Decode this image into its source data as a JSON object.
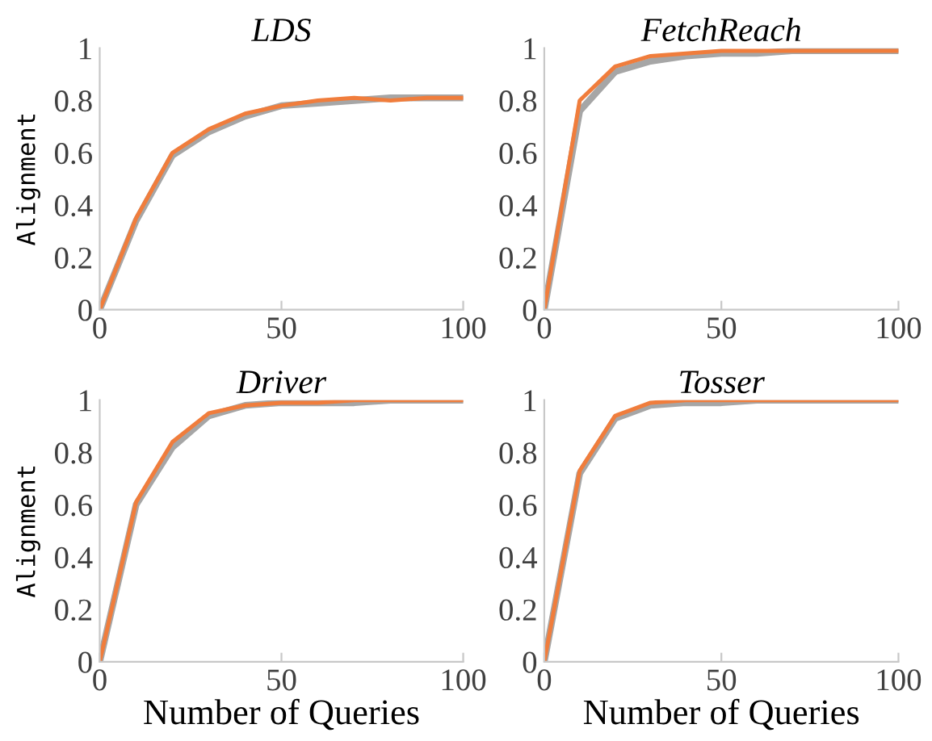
{
  "chart_data": [
    {
      "type": "line",
      "title": "LDS",
      "ylabel": "Alignment",
      "x": [
        0,
        10,
        20,
        30,
        40,
        50,
        60,
        70,
        80,
        90,
        100
      ],
      "xlim": [
        0,
        100
      ],
      "ylim": [
        0,
        1
      ],
      "xticks": [
        0,
        50,
        100
      ],
      "yticks": [
        0,
        0.2,
        0.4,
        0.6,
        0.8,
        1
      ],
      "series": [
        {
          "color": "#a6a6a6",
          "values": [
            0,
            0.34,
            0.59,
            0.68,
            0.74,
            0.78,
            0.79,
            0.8,
            0.81,
            0.81,
            0.81
          ]
        },
        {
          "color": "#f07d3c",
          "values": [
            0,
            0.35,
            0.6,
            0.69,
            0.75,
            0.78,
            0.8,
            0.81,
            0.8,
            0.81,
            0.81
          ]
        }
      ]
    },
    {
      "type": "line",
      "title": "FetchReach",
      "x": [
        0,
        10,
        20,
        30,
        40,
        50,
        60,
        70,
        80,
        90,
        100
      ],
      "xlim": [
        0,
        100
      ],
      "ylim": [
        0,
        1
      ],
      "xticks": [
        0,
        50,
        100
      ],
      "yticks": [
        0,
        0.2,
        0.4,
        0.6,
        0.8,
        1
      ],
      "series": [
        {
          "color": "#a6a6a6",
          "values": [
            0,
            0.76,
            0.91,
            0.95,
            0.97,
            0.98,
            0.98,
            0.99,
            0.99,
            0.99,
            0.99
          ]
        },
        {
          "color": "#f07d3c",
          "values": [
            0,
            0.8,
            0.93,
            0.97,
            0.98,
            0.99,
            0.99,
            0.99,
            0.99,
            0.99,
            0.99
          ]
        }
      ]
    },
    {
      "type": "line",
      "title": "Driver",
      "ylabel": "Alignment",
      "xlabel": "Number of Queries",
      "x": [
        0,
        10,
        20,
        30,
        40,
        50,
        60,
        70,
        80,
        90,
        100
      ],
      "xlim": [
        0,
        100
      ],
      "ylim": [
        0,
        1
      ],
      "xticks": [
        0,
        50,
        100
      ],
      "yticks": [
        0,
        0.2,
        0.4,
        0.6,
        0.8,
        1
      ],
      "series": [
        {
          "color": "#a6a6a6",
          "values": [
            0,
            0.6,
            0.82,
            0.94,
            0.98,
            0.99,
            0.99,
            0.99,
            1,
            1,
            1
          ]
        },
        {
          "color": "#f07d3c",
          "values": [
            0,
            0.61,
            0.84,
            0.95,
            0.98,
            0.99,
            0.99,
            1,
            1,
            1,
            1
          ]
        }
      ]
    },
    {
      "type": "line",
      "title": "Tosser",
      "xlabel": "Number of Queries",
      "x": [
        0,
        10,
        20,
        30,
        40,
        50,
        60,
        70,
        80,
        90,
        100
      ],
      "xlim": [
        0,
        100
      ],
      "ylim": [
        0,
        1
      ],
      "xticks": [
        0,
        50,
        100
      ],
      "yticks": [
        0,
        0.2,
        0.4,
        0.6,
        0.8,
        1
      ],
      "series": [
        {
          "color": "#a6a6a6",
          "values": [
            0,
            0.72,
            0.93,
            0.98,
            0.99,
            0.99,
            1,
            1,
            1,
            1,
            1
          ]
        },
        {
          "color": "#f07d3c",
          "values": [
            0,
            0.73,
            0.94,
            0.99,
            1,
            1,
            1,
            1,
            1,
            1,
            1
          ]
        }
      ]
    }
  ]
}
